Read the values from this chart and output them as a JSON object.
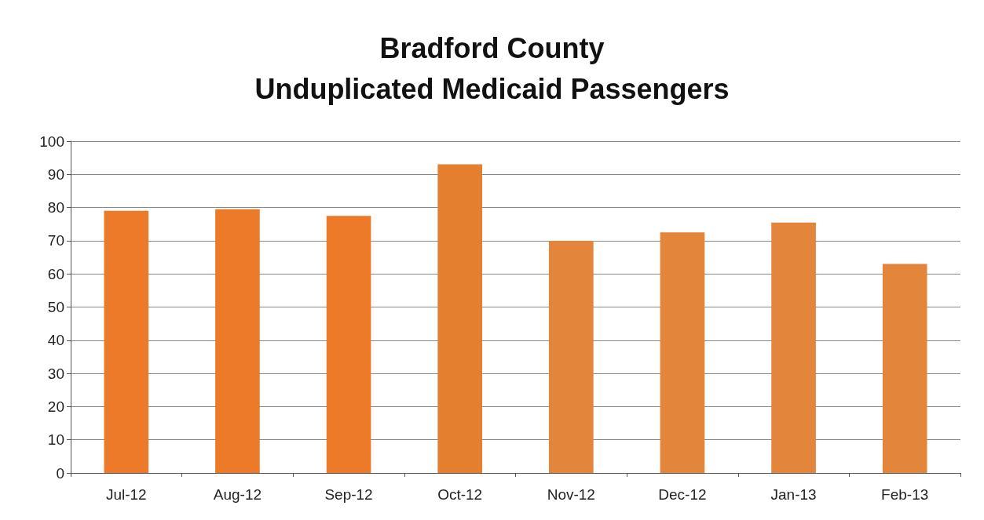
{
  "chart_data": {
    "type": "bar",
    "title": "Bradford County\nUnduplicated Medicaid Passengers",
    "categories": [
      "Jul-12",
      "Aug-12",
      "Sep-12",
      "Oct-12",
      "Nov-12",
      "Dec-12",
      "Jan-13",
      "Feb-13"
    ],
    "values": [
      79,
      79.5,
      77.5,
      93,
      70,
      72.5,
      75.5,
      63
    ],
    "colors": [
      "#ec7a28",
      "#ec7a28",
      "#ec7a28",
      "#e47f30",
      "#e3853a",
      "#e3853a",
      "#e3853a",
      "#e3853a"
    ],
    "ylim": [
      0,
      100
    ],
    "yticks": [
      0,
      10,
      20,
      30,
      40,
      50,
      60,
      70,
      80,
      90,
      100
    ],
    "grid": "y"
  }
}
